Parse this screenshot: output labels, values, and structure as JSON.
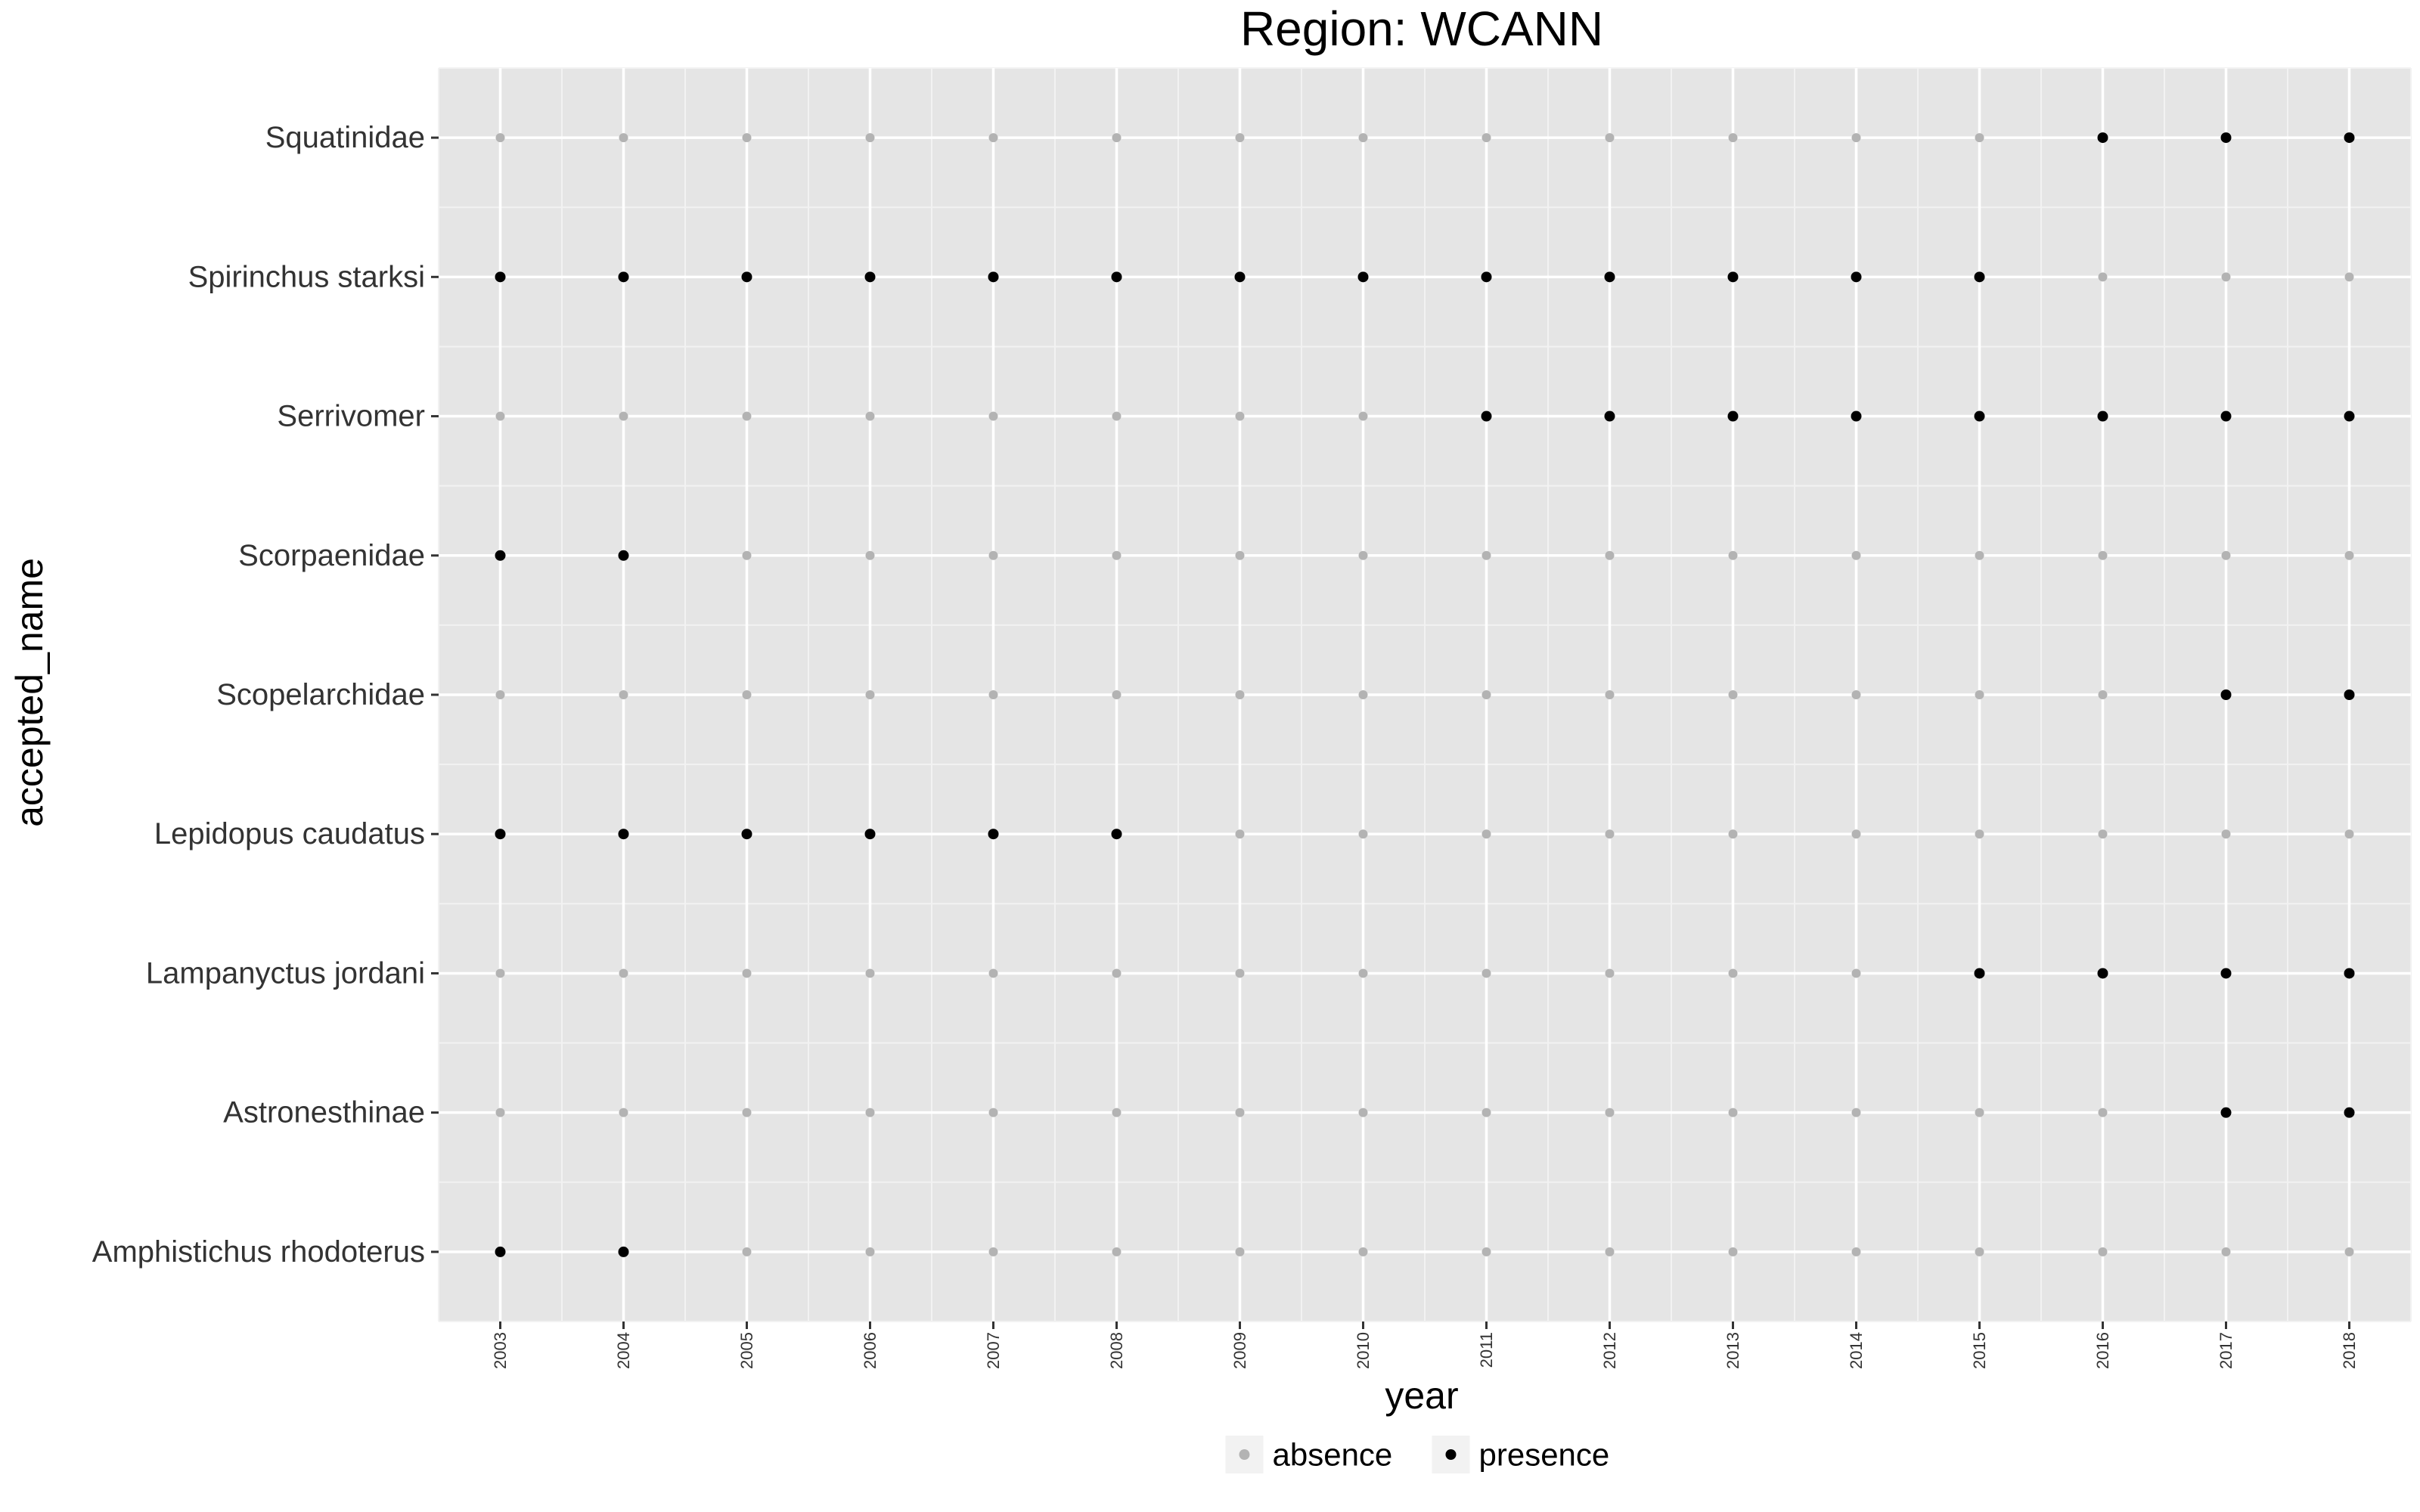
{
  "chart_data": {
    "type": "scatter",
    "title": "Region: WCANN",
    "xlabel": "year",
    "ylabel": "accepted_name",
    "x_categories": [
      "2003",
      "2004",
      "2005",
      "2006",
      "2007",
      "2008",
      "2009",
      "2010",
      "2011",
      "2012",
      "2013",
      "2014",
      "2015",
      "2016",
      "2017",
      "2018"
    ],
    "y_categories": [
      "Amphistichus rhodoterus",
      "Astronesthinae",
      "Lampanyctus jordani",
      "Lepidopus caudatus",
      "Scopelarchidae",
      "Scorpaenidae",
      "Serrivomer",
      "Spirinchus starksi",
      "Squatinidae"
    ],
    "series": [
      {
        "name": "Squatinidae",
        "values": [
          "absence",
          "absence",
          "absence",
          "absence",
          "absence",
          "absence",
          "absence",
          "absence",
          "absence",
          "absence",
          "absence",
          "absence",
          "absence",
          "presence",
          "presence",
          "presence"
        ]
      },
      {
        "name": "Spirinchus starksi",
        "values": [
          "presence",
          "presence",
          "presence",
          "presence",
          "presence",
          "presence",
          "presence",
          "presence",
          "presence",
          "presence",
          "presence",
          "presence",
          "presence",
          "absence",
          "absence",
          "absence"
        ]
      },
      {
        "name": "Serrivomer",
        "values": [
          "absence",
          "absence",
          "absence",
          "absence",
          "absence",
          "absence",
          "absence",
          "absence",
          "presence",
          "presence",
          "presence",
          "presence",
          "presence",
          "presence",
          "presence",
          "presence"
        ]
      },
      {
        "name": "Scorpaenidae",
        "values": [
          "presence",
          "presence",
          "absence",
          "absence",
          "absence",
          "absence",
          "absence",
          "absence",
          "absence",
          "absence",
          "absence",
          "absence",
          "absence",
          "absence",
          "absence",
          "absence"
        ]
      },
      {
        "name": "Scopelarchidae",
        "values": [
          "absence",
          "absence",
          "absence",
          "absence",
          "absence",
          "absence",
          "absence",
          "absence",
          "absence",
          "absence",
          "absence",
          "absence",
          "absence",
          "absence",
          "presence",
          "presence"
        ]
      },
      {
        "name": "Lepidopus caudatus",
        "values": [
          "presence",
          "presence",
          "presence",
          "presence",
          "presence",
          "presence",
          "absence",
          "absence",
          "absence",
          "absence",
          "absence",
          "absence",
          "absence",
          "absence",
          "absence",
          "absence"
        ]
      },
      {
        "name": "Lampanyctus jordani",
        "values": [
          "absence",
          "absence",
          "absence",
          "absence",
          "absence",
          "absence",
          "absence",
          "absence",
          "absence",
          "absence",
          "absence",
          "absence",
          "presence",
          "presence",
          "presence",
          "presence"
        ]
      },
      {
        "name": "Astronesthinae",
        "values": [
          "absence",
          "absence",
          "absence",
          "absence",
          "absence",
          "absence",
          "absence",
          "absence",
          "absence",
          "absence",
          "absence",
          "absence",
          "absence",
          "absence",
          "presence",
          "presence"
        ]
      },
      {
        "name": "Amphistichus rhodoterus",
        "values": [
          "presence",
          "presence",
          "absence",
          "absence",
          "absence",
          "absence",
          "absence",
          "absence",
          "absence",
          "absence",
          "absence",
          "absence",
          "absence",
          "absence",
          "absence",
          "absence"
        ]
      }
    ],
    "legend": {
      "position": "bottom",
      "entries": [
        {
          "label": "absence",
          "color": "#b3b3b3"
        },
        {
          "label": "presence",
          "color": "#000000"
        }
      ]
    },
    "grid": true,
    "colors": {
      "panel_bg": "#e5e5e5",
      "grid_major": "#ffffff",
      "grid_minor": "#f2f2f2",
      "absence": "#b3b3b3",
      "presence": "#000000",
      "tick": "#333333",
      "legend_key_bg": "#f2f2f2"
    }
  }
}
